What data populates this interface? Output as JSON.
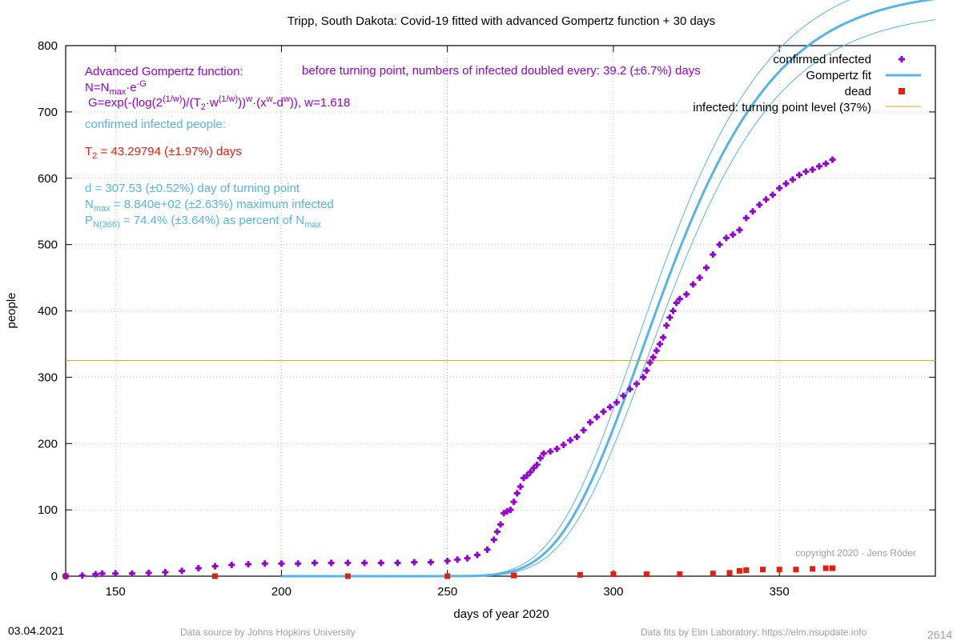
{
  "chart_data": {
    "type": "scatter",
    "title": "Tripp,  South Dakota: Covid-19 fitted with advanced Gompertz function + 30 days",
    "xlabel": "days of year 2020",
    "ylabel": "people",
    "xlim": [
      135,
      397
    ],
    "ylim": [
      0,
      800
    ],
    "x_ticks": [
      150,
      200,
      250,
      300,
      350
    ],
    "y_ticks": [
      0,
      100,
      200,
      300,
      400,
      500,
      600,
      700,
      800
    ],
    "grid": true,
    "legend_position": "top-right",
    "turning_point_level": 325,
    "fit_params": {
      "T2": 43.29794,
      "w": 1.618,
      "d": 307.53,
      "Nmax": 884.0
    },
    "series": [
      {
        "name": "confirmed infected",
        "style": "plus",
        "color": "#9400d3",
        "points": [
          [
            135,
            0
          ],
          [
            140,
            1
          ],
          [
            144,
            3
          ],
          [
            146,
            4
          ],
          [
            150,
            4
          ],
          [
            155,
            4
          ],
          [
            160,
            5
          ],
          [
            165,
            6
          ],
          [
            170,
            8
          ],
          [
            175,
            12
          ],
          [
            180,
            15
          ],
          [
            185,
            17
          ],
          [
            190,
            18
          ],
          [
            195,
            19
          ],
          [
            200,
            19
          ],
          [
            205,
            19
          ],
          [
            210,
            20
          ],
          [
            215,
            20
          ],
          [
            220,
            20
          ],
          [
            225,
            20
          ],
          [
            230,
            20
          ],
          [
            235,
            20
          ],
          [
            240,
            21
          ],
          [
            245,
            21
          ],
          [
            250,
            23
          ],
          [
            253,
            25
          ],
          [
            256,
            27
          ],
          [
            259,
            32
          ],
          [
            262,
            40
          ],
          [
            264,
            55
          ],
          [
            265,
            67
          ],
          [
            266,
            78
          ],
          [
            267,
            95
          ],
          [
            268,
            98
          ],
          [
            269,
            100
          ],
          [
            270,
            112
          ],
          [
            271,
            125
          ],
          [
            272,
            135
          ],
          [
            273,
            148
          ],
          [
            274,
            152
          ],
          [
            275,
            157
          ],
          [
            276,
            163
          ],
          [
            277,
            168
          ],
          [
            278,
            178
          ],
          [
            279,
            185
          ],
          [
            281,
            188
          ],
          [
            283,
            192
          ],
          [
            285,
            198
          ],
          [
            287,
            205
          ],
          [
            289,
            210
          ],
          [
            291,
            220
          ],
          [
            293,
            232
          ],
          [
            295,
            240
          ],
          [
            297,
            248
          ],
          [
            299,
            255
          ],
          [
            301,
            262
          ],
          [
            303,
            272
          ],
          [
            305,
            282
          ],
          [
            307,
            290
          ],
          [
            309,
            300
          ],
          [
            310,
            310
          ],
          [
            311,
            322
          ],
          [
            312,
            330
          ],
          [
            313,
            340
          ],
          [
            314,
            350
          ],
          [
            315,
            360
          ],
          [
            316,
            378
          ],
          [
            317,
            390
          ],
          [
            318,
            400
          ],
          [
            319,
            412
          ],
          [
            320,
            418
          ],
          [
            322,
            425
          ],
          [
            324,
            440
          ],
          [
            326,
            450
          ],
          [
            328,
            465
          ],
          [
            330,
            485
          ],
          [
            332,
            500
          ],
          [
            334,
            510
          ],
          [
            336,
            515
          ],
          [
            338,
            522
          ],
          [
            340,
            540
          ],
          [
            342,
            550
          ],
          [
            344,
            560
          ],
          [
            346,
            568
          ],
          [
            348,
            575
          ],
          [
            350,
            585
          ],
          [
            352,
            592
          ],
          [
            354,
            598
          ],
          [
            356,
            605
          ],
          [
            358,
            610
          ],
          [
            360,
            613
          ],
          [
            362,
            618
          ],
          [
            364,
            622
          ],
          [
            366,
            628
          ]
        ]
      },
      {
        "name": "Gompertz fit",
        "style": "line",
        "color": "#56b4e9"
      },
      {
        "name": "dead",
        "style": "square",
        "color": "#e51e10",
        "points": [
          [
            135,
            0
          ],
          [
            180,
            0
          ],
          [
            220,
            0
          ],
          [
            250,
            0
          ],
          [
            270,
            1
          ],
          [
            290,
            2
          ],
          [
            300,
            3
          ],
          [
            310,
            3
          ],
          [
            320,
            3
          ],
          [
            330,
            4
          ],
          [
            335,
            5
          ],
          [
            338,
            8
          ],
          [
            340,
            9
          ],
          [
            345,
            10
          ],
          [
            350,
            10
          ],
          [
            355,
            10
          ],
          [
            360,
            11
          ],
          [
            364,
            12
          ],
          [
            366,
            12
          ]
        ]
      },
      {
        "name": "infected: turning point level (37%)",
        "style": "hline",
        "color": "#daa520"
      }
    ]
  },
  "annotations": {
    "adv_title": "Advanced Gompertz function:",
    "formula_n_prefix": "N=N",
    "formula_n_sub": "max",
    "formula_n_mid": "·e",
    "formula_n_sup": "-G",
    "formula_g_a": "G=exp(-(log(2",
    "formula_g_sup1": "(1/w)",
    "formula_g_b": ")/(T",
    "formula_g_sub2": "2",
    "formula_g_c": "·w",
    "formula_g_sup3": "(1/w)",
    "formula_g_d": "))",
    "formula_g_sup4": "w",
    "formula_g_e": "·(x",
    "formula_g_sup5": "w",
    "formula_g_f": "-d",
    "formula_g_sup6": "w",
    "formula_g_g": ")), w=1.618",
    "doubling": "before turning point, numbers of infected doubled every: 39.2 (±6.7%) days",
    "confirmed_label": "confirmed infected people:",
    "t2_prefix": "T",
    "t2_sub": "2",
    "t2_rest": " = 43.29794 (±1.97%) days",
    "d_line": "d = 307.53 (±0.52%) day of turning point",
    "nmax_prefix": "N",
    "nmax_sub": "max",
    "nmax_rest": " = 8.840e+02 (±2.63%) maximum infected",
    "p_prefix": "P",
    "p_sub": "N(366)",
    "p_mid": " = 74.4% (±3.64%) as percent of N",
    "p_sub2": "max",
    "copyright": "copyright 2020 - Jens Röder"
  },
  "footer": {
    "date": "03.04.2021",
    "source": "Data source by Johns Hopkins University",
    "fits": "Data fits by Elm Laboratory: https://elm.nsupdate.info",
    "code": "2614"
  }
}
